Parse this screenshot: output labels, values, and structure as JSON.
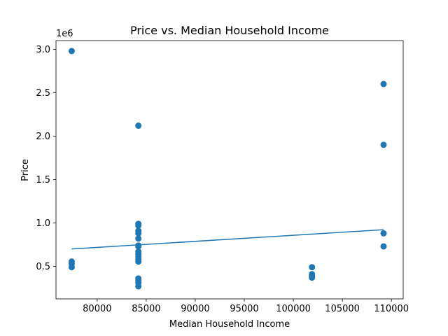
{
  "chart_data": {
    "type": "scatter",
    "title": "Price vs. Median Household Income",
    "xlabel": "Median Household Income",
    "ylabel": "Price",
    "y_offset_label": "1e6",
    "y_scale": 1000000,
    "xlim": [
      75800,
      111200
    ],
    "ylim": [
      125000,
      3100000
    ],
    "x_ticks": [
      80000,
      85000,
      90000,
      95000,
      100000,
      105000,
      110000
    ],
    "x_tick_labels": [
      "80000",
      "85000",
      "90000",
      "95000",
      "100000",
      "105000",
      "110000"
    ],
    "y_ticks": [
      500000,
      1000000,
      1500000,
      2000000,
      2500000,
      3000000
    ],
    "y_tick_labels": [
      "0.5",
      "1.0",
      "1.5",
      "2.0",
      "2.5",
      "3.0"
    ],
    "grid": false,
    "color": "#1f77b4",
    "points": [
      {
        "x": 77400,
        "y": 2980000
      },
      {
        "x": 77400,
        "y": 555000
      },
      {
        "x": 77400,
        "y": 530000
      },
      {
        "x": 77400,
        "y": 490000
      },
      {
        "x": 84200,
        "y": 2120000
      },
      {
        "x": 84200,
        "y": 990000
      },
      {
        "x": 84200,
        "y": 970000
      },
      {
        "x": 84200,
        "y": 910000
      },
      {
        "x": 84200,
        "y": 880000
      },
      {
        "x": 84200,
        "y": 820000
      },
      {
        "x": 84200,
        "y": 740000
      },
      {
        "x": 84200,
        "y": 730000
      },
      {
        "x": 84200,
        "y": 670000
      },
      {
        "x": 84200,
        "y": 640000
      },
      {
        "x": 84200,
        "y": 610000
      },
      {
        "x": 84200,
        "y": 580000
      },
      {
        "x": 84200,
        "y": 555000
      },
      {
        "x": 84200,
        "y": 360000
      },
      {
        "x": 84200,
        "y": 340000
      },
      {
        "x": 84200,
        "y": 310000
      },
      {
        "x": 84200,
        "y": 270000
      },
      {
        "x": 101900,
        "y": 490000
      },
      {
        "x": 101900,
        "y": 410000
      },
      {
        "x": 101900,
        "y": 390000
      },
      {
        "x": 101900,
        "y": 370000
      },
      {
        "x": 109200,
        "y": 2600000
      },
      {
        "x": 109200,
        "y": 1900000
      },
      {
        "x": 109200,
        "y": 880000
      },
      {
        "x": 109200,
        "y": 730000
      }
    ],
    "trend_line": {
      "x": [
        77400,
        109200
      ],
      "y": [
        700000,
        922000
      ]
    }
  }
}
